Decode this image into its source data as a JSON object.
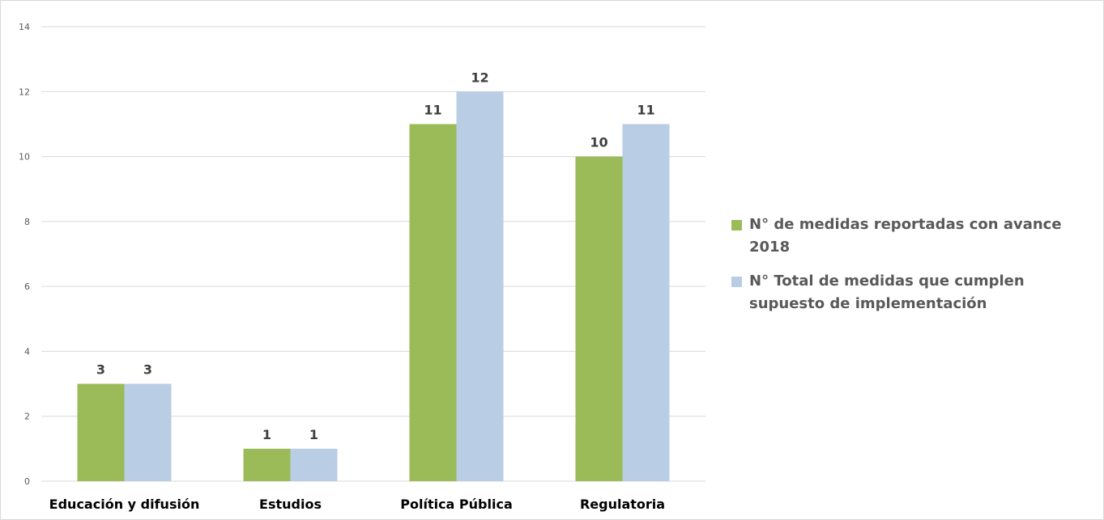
{
  "chart_data": {
    "type": "bar",
    "categories": [
      "Educación y difusión",
      "Estudios",
      "Política Pública",
      "Regulatoria"
    ],
    "series": [
      {
        "name": "N° de medidas reportadas con avance 2018",
        "values": [
          3,
          1,
          11,
          10
        ],
        "color": "#9bbb59"
      },
      {
        "name": "N° Total de medidas que cumplen supuesto de implementación",
        "values": [
          3,
          1,
          12,
          11
        ],
        "color": "#b9cde5"
      }
    ],
    "ylim": [
      0,
      14
    ],
    "yticks": [
      0,
      2,
      4,
      6,
      8,
      10,
      12,
      14
    ],
    "grid": true,
    "legend_position": "right",
    "data_labels": true
  }
}
